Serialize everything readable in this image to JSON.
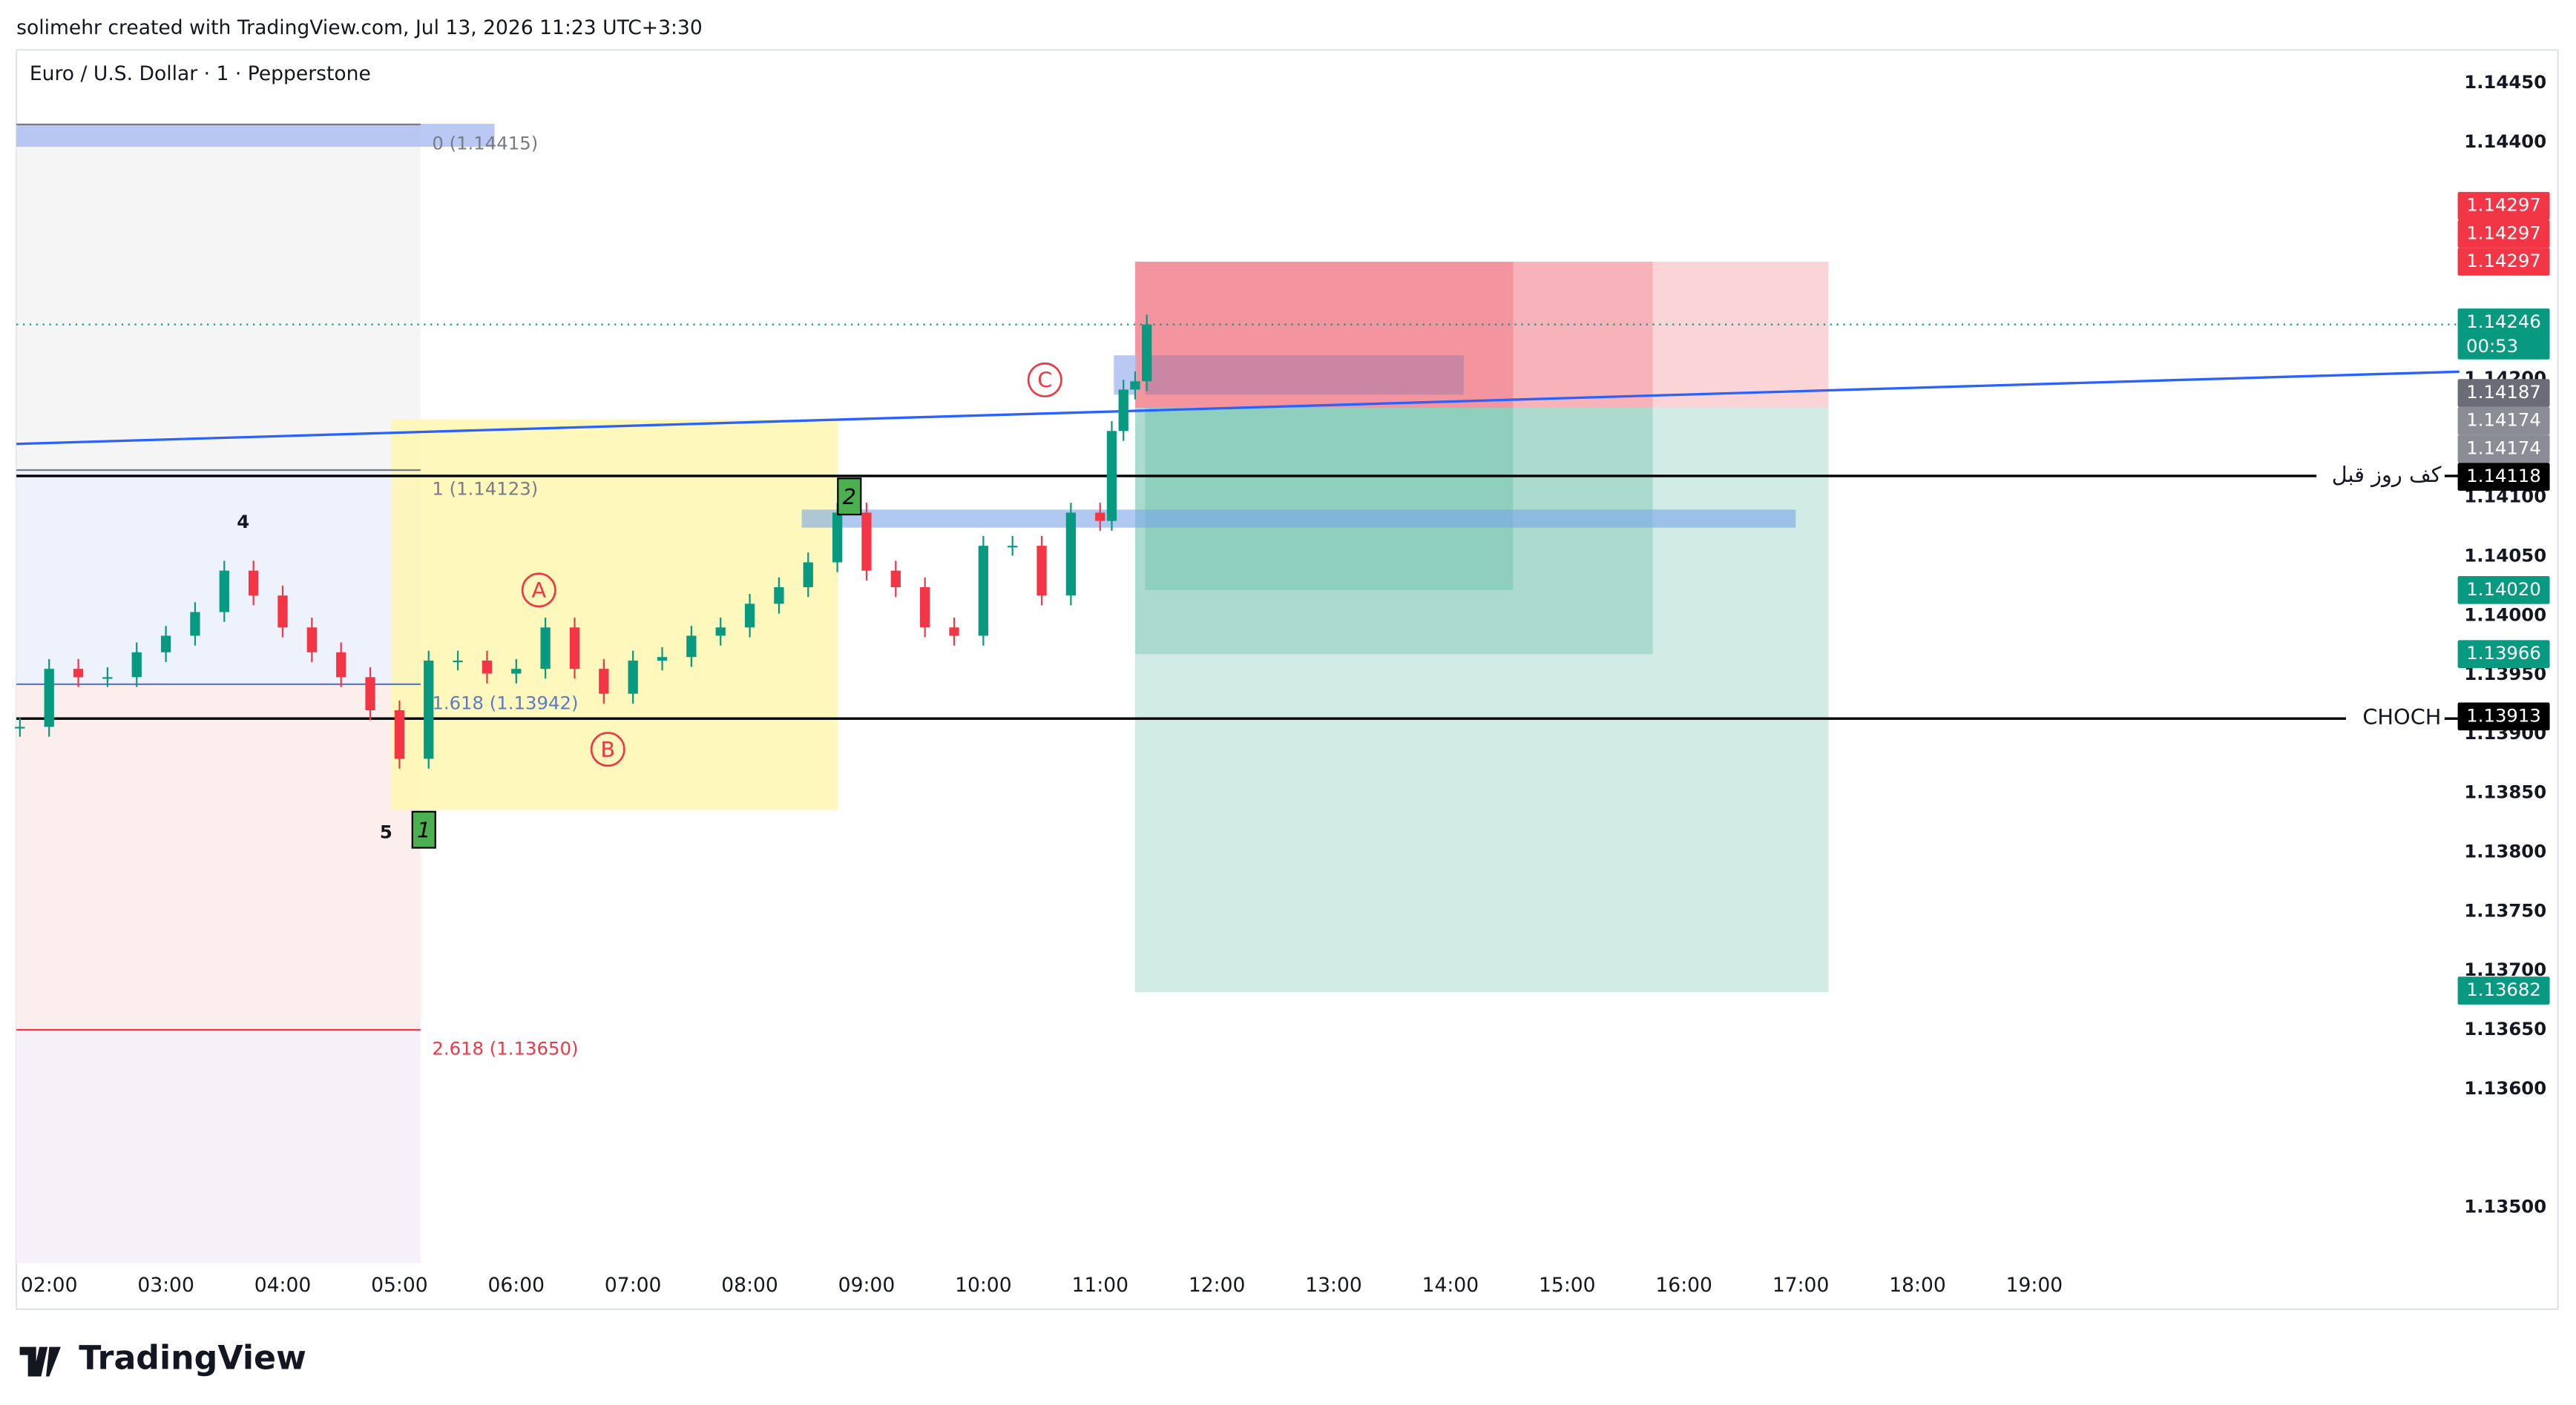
{
  "header": "solimehr created with TradingView.com, Jul 13, 2026 11:23 UTC+3:30",
  "logo": "TradingView",
  "chart_data": {
    "type": "candlestick",
    "title": "Euro / U.S. Dollar · 1 · Pepperstone",
    "x": [
      1.75,
      2.0,
      2.25,
      2.5,
      2.75,
      3.0,
      3.25,
      3.5,
      3.75,
      4.0,
      4.25,
      4.5,
      4.75,
      5.0,
      5.25,
      5.5,
      5.75,
      6.0,
      6.25,
      6.5,
      6.75,
      7.0,
      7.25,
      7.5,
      7.75,
      8.0,
      8.25,
      8.5,
      8.75,
      9.0,
      9.25,
      9.5,
      9.75,
      10.0,
      10.25,
      10.5,
      10.75,
      11.0,
      11.1,
      11.2,
      11.3,
      11.4
    ],
    "closes": [
      1.13906,
      1.13955,
      1.13948,
      1.13948,
      1.13969,
      1.13983,
      1.14003,
      1.14038,
      1.14017,
      1.1399,
      1.13969,
      1.13948,
      1.1392,
      1.13879,
      1.13962,
      1.13962,
      1.13951,
      1.13955,
      1.1399,
      1.13955,
      1.13934,
      1.13962,
      1.13965,
      1.13983,
      1.1399,
      1.1401,
      1.14024,
      1.14045,
      1.14087,
      1.14038,
      1.14024,
      1.1399,
      1.13983,
      1.14059,
      1.14059,
      1.14017,
      1.14087,
      1.1408,
      1.14156,
      1.14191,
      1.14198,
      1.14246
    ],
    "up_color": "#089981",
    "down_color": "#f23645",
    "xlim": [
      1.72,
      22.64
    ],
    "xticks": [
      {
        "value": 2,
        "label": "02:00"
      },
      {
        "value": 3,
        "label": "03:00"
      },
      {
        "value": 4,
        "label": "04:00"
      },
      {
        "value": 5,
        "label": "05:00"
      },
      {
        "value": 6,
        "label": "06:00"
      },
      {
        "value": 7,
        "label": "07:00"
      },
      {
        "value": 8,
        "label": "08:00"
      },
      {
        "value": 9,
        "label": "09:00"
      },
      {
        "value": 10,
        "label": "10:00"
      },
      {
        "value": 11,
        "label": "11:00"
      },
      {
        "value": 12,
        "label": "12:00"
      },
      {
        "value": 13,
        "label": "13:00"
      },
      {
        "value": 14,
        "label": "14:00"
      },
      {
        "value": 15,
        "label": "15:00"
      },
      {
        "value": 16,
        "label": "16:00"
      },
      {
        "value": 17,
        "label": "17:00"
      },
      {
        "value": 18,
        "label": "18:00"
      },
      {
        "value": 19,
        "label": "19:00"
      }
    ],
    "ylim": [
      1.13414,
      1.14478
    ],
    "yticks": [
      {
        "value": 1.1445,
        "label": "1.14450"
      },
      {
        "value": 1.144,
        "label": "1.14400"
      },
      {
        "value": 1.142,
        "label": "1.14200"
      },
      {
        "value": 1.141,
        "label": "1.14100"
      },
      {
        "value": 1.1405,
        "label": "1.14050"
      },
      {
        "value": 1.14,
        "label": "1.14000"
      },
      {
        "value": 1.1395,
        "label": "1.13950"
      },
      {
        "value": 1.139,
        "label": "1.13900"
      },
      {
        "value": 1.1385,
        "label": "1.13850"
      },
      {
        "value": 1.138,
        "label": "1.13800"
      },
      {
        "value": 1.1375,
        "label": "1.13750"
      },
      {
        "value": 1.137,
        "label": "1.13700"
      },
      {
        "value": 1.1365,
        "label": "1.13650"
      },
      {
        "value": 1.136,
        "label": "1.13600"
      },
      {
        "value": 1.135,
        "label": "1.13500"
      }
    ],
    "grid": false,
    "price_tags": [
      {
        "value": 1.14297,
        "label": "1.14297",
        "color": "#f23645"
      },
      {
        "value": 1.14297,
        "label": "1.14297",
        "color": "#f23645"
      },
      {
        "value": 1.14297,
        "label": "1.14297",
        "color": "#f23645"
      },
      {
        "value": 1.14246,
        "label": "1.14246",
        "color": "#089981",
        "countdown": "00:53"
      },
      {
        "value": 1.14187,
        "label": "1.14187",
        "color": "#6a6d78"
      },
      {
        "value": 1.14174,
        "label": "1.14174",
        "color": "#8a8d96"
      },
      {
        "value": 1.14174,
        "label": "1.14174",
        "color": "#8a8d96"
      },
      {
        "value": 1.14118,
        "label": "1.14118",
        "color": "#000000"
      },
      {
        "value": 1.1402,
        "label": "1.14020",
        "color": "#089981"
      },
      {
        "value": 1.13966,
        "label": "1.13966",
        "color": "#089981"
      },
      {
        "value": 1.13913,
        "label": "1.13913",
        "color": "#000000"
      },
      {
        "value": 1.13682,
        "label": "1.13682",
        "color": "#089981"
      }
    ],
    "levels": [
      {
        "label": "کف روز قبل",
        "value": 1.14118
      },
      {
        "label": "CHOCH",
        "value": 1.13913
      }
    ],
    "fib": [
      {
        "label": "0 (1.14415)",
        "value": 1.14415,
        "color": "#787b86"
      },
      {
        "label": "1 (1.14123)",
        "value": 1.14123,
        "color": "#787b86"
      },
      {
        "label": "1.618 (1.13942)",
        "value": 1.13942,
        "color": "#5b7bc9"
      },
      {
        "label": "2.618 (1.13650)",
        "value": 1.1365,
        "color": "#f23645"
      }
    ],
    "waves": [
      "4",
      "5",
      "A",
      "B",
      "C",
      "1",
      "2"
    ]
  }
}
